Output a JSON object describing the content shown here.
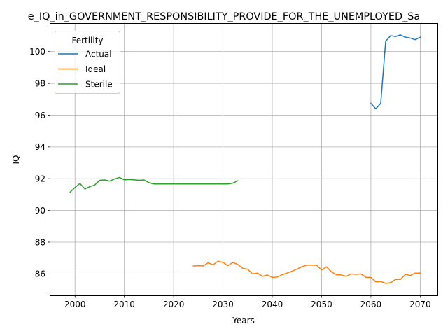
{
  "chart_data": {
    "type": "line",
    "title": "e_IQ_in_GOVERNMENT_RESPONSIBILITY_PROVIDE_FOR_THE_UNEMPLOYED_Sa",
    "xlabel": "Years",
    "ylabel": "IQ",
    "xlim": [
      1995.0,
      2073.5
    ],
    "ylim": [
      84.65,
      101.75
    ],
    "xticks": [
      2000,
      2010,
      2020,
      2030,
      2040,
      2050,
      2060,
      2070
    ],
    "yticks": [
      86,
      88,
      90,
      92,
      94,
      96,
      98,
      100
    ],
    "grid": true,
    "legend": {
      "title": "Fertility",
      "placement": "top-left"
    },
    "series": [
      {
        "name": "Actual",
        "color": "#1f77b4",
        "x": [
          2060,
          2061,
          2062,
          2063,
          2064,
          2065,
          2066,
          2067,
          2068,
          2069,
          2070
        ],
        "y": [
          96.75,
          96.4,
          96.75,
          100.65,
          101.0,
          100.95,
          101.05,
          100.9,
          100.85,
          100.75,
          100.9
        ]
      },
      {
        "name": "Ideal",
        "color": "#ff7f0e",
        "x": [
          2024,
          2025,
          2026,
          2027,
          2028,
          2029,
          2030,
          2031,
          2032,
          2033,
          2034,
          2035,
          2036,
          2037,
          2038,
          2039,
          2040,
          2041,
          2042,
          2043,
          2044,
          2045,
          2046,
          2047,
          2048,
          2049,
          2050,
          2051,
          2052,
          2053,
          2054,
          2055,
          2056,
          2057,
          2058,
          2059,
          2060,
          2061,
          2062,
          2063,
          2064,
          2065,
          2066,
          2067,
          2068,
          2069,
          2070
        ],
        "y": [
          86.5,
          86.52,
          86.5,
          86.7,
          86.57,
          86.8,
          86.73,
          86.52,
          86.72,
          86.6,
          86.35,
          86.3,
          86.0,
          86.05,
          85.85,
          85.93,
          85.78,
          85.8,
          85.95,
          86.05,
          86.17,
          86.3,
          86.45,
          86.55,
          86.55,
          86.55,
          86.25,
          86.45,
          86.13,
          85.95,
          85.93,
          85.85,
          86.0,
          85.97,
          86.0,
          85.78,
          85.78,
          85.5,
          85.52,
          85.4,
          85.45,
          85.65,
          85.65,
          85.97,
          85.9,
          86.05,
          86.05
        ]
      },
      {
        "name": "Sterile",
        "color": "#2ca02c",
        "x": [
          1999,
          2000,
          2001,
          2002,
          2003,
          2004,
          2005,
          2006,
          2007,
          2008,
          2009,
          2010,
          2011,
          2012,
          2013,
          2014,
          2015,
          2016,
          2017,
          2018,
          2019,
          2020,
          2021,
          2022,
          2023,
          2024,
          2025,
          2026,
          2027,
          2028,
          2029,
          2030,
          2031,
          2032,
          2033
        ],
        "y": [
          91.15,
          91.45,
          91.7,
          91.35,
          91.5,
          91.6,
          91.9,
          91.92,
          91.85,
          91.98,
          92.08,
          91.93,
          91.95,
          91.93,
          91.9,
          91.92,
          91.75,
          91.67,
          91.67,
          91.67,
          91.67,
          91.67,
          91.67,
          91.67,
          91.67,
          91.67,
          91.67,
          91.67,
          91.67,
          91.67,
          91.67,
          91.67,
          91.67,
          91.72,
          91.87
        ]
      }
    ]
  }
}
